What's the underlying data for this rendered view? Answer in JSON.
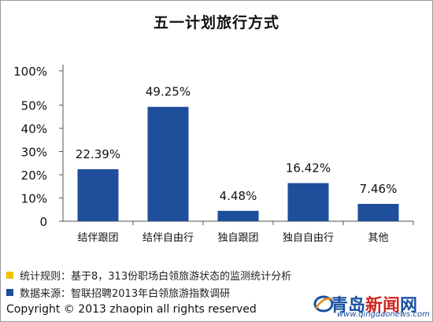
{
  "chart_data": {
    "type": "bar",
    "title": "五一计划旅行方式",
    "categories": [
      "结伴跟团",
      "结伴自由行",
      "独自跟团",
      "独自自由行",
      "其他"
    ],
    "values": [
      22.39,
      49.25,
      4.48,
      16.42,
      7.46
    ],
    "value_labels": [
      "22.39%",
      "49.25%",
      "4.48%",
      "16.42%",
      "7.46%"
    ],
    "y_ticks": [
      "0",
      "10%",
      "20%",
      "30%",
      "40%",
      "50%",
      "100%"
    ],
    "y_tick_values": [
      0,
      10,
      20,
      30,
      40,
      50,
      100
    ],
    "axis_break": "between 50% and 100%",
    "bar_color": "#1f4e9b",
    "grid": false
  },
  "legend": {
    "rule": {
      "color": "#f2c200",
      "text": "统计规则：基于8，313份职场白领旅游状态的监测统计分析"
    },
    "source": {
      "color": "#1f4e9b",
      "text": "数据来源：智联招聘2013年白领旅游指数调研"
    }
  },
  "copyright": "Copyright © 2013 zhaopin all rights reserved",
  "brand": {
    "name_part1": "青岛",
    "name_part2": "新闻",
    "name_part3": "网",
    "url": "www.qingdaonews.com"
  }
}
